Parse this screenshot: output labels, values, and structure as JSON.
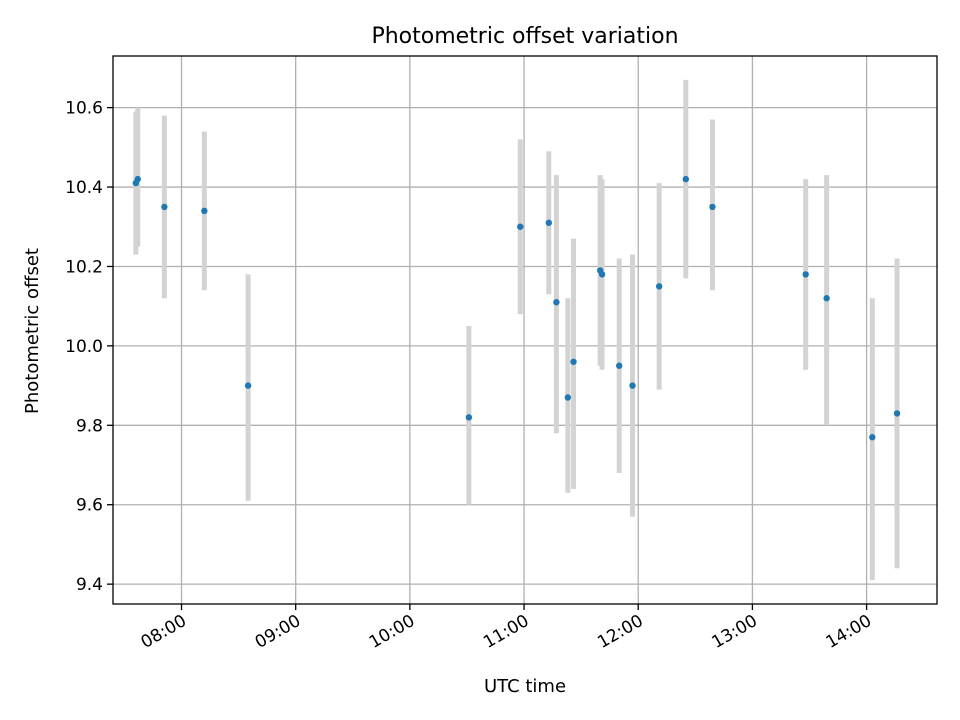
{
  "chart_data": {
    "type": "scatter",
    "title": "Photometric offset variation",
    "xlabel": "UTC time",
    "ylabel": "Photometric offset",
    "x_axis": {
      "kind": "time",
      "range": [
        "07:24",
        "14:37"
      ],
      "ticks": [
        "08:00",
        "09:00",
        "10:00",
        "11:00",
        "12:00",
        "13:00",
        "14:00"
      ]
    },
    "y_axis": {
      "range": [
        9.35,
        10.73
      ],
      "ticks": [
        9.4,
        9.6,
        9.8,
        10.0,
        10.2,
        10.4,
        10.6
      ]
    },
    "grid": true,
    "legend": "none",
    "colors": {
      "point": "#1f77b4",
      "errorbar": "#d3d3d3"
    },
    "points": [
      {
        "x": "07:36",
        "y": 10.41,
        "err_low": 10.23,
        "err_high": 10.59
      },
      {
        "x": "07:37",
        "y": 10.42,
        "err_low": 10.25,
        "err_high": 10.6
      },
      {
        "x": "07:51",
        "y": 10.35,
        "err_low": 10.12,
        "err_high": 10.58
      },
      {
        "x": "08:12",
        "y": 10.34,
        "err_low": 10.14,
        "err_high": 10.54
      },
      {
        "x": "08:35",
        "y": 9.9,
        "err_low": 9.61,
        "err_high": 10.18
      },
      {
        "x": "10:31",
        "y": 9.82,
        "err_low": 9.6,
        "err_high": 10.05
      },
      {
        "x": "10:58",
        "y": 10.3,
        "err_low": 10.08,
        "err_high": 10.52
      },
      {
        "x": "11:13",
        "y": 10.31,
        "err_low": 10.13,
        "err_high": 10.49
      },
      {
        "x": "11:17",
        "y": 10.11,
        "err_low": 9.78,
        "err_high": 10.43
      },
      {
        "x": "11:23",
        "y": 9.87,
        "err_low": 9.63,
        "err_high": 10.12
      },
      {
        "x": "11:26",
        "y": 9.96,
        "err_low": 9.64,
        "err_high": 10.27
      },
      {
        "x": "11:40",
        "y": 10.19,
        "err_low": 9.95,
        "err_high": 10.43
      },
      {
        "x": "11:41",
        "y": 10.18,
        "err_low": 9.94,
        "err_high": 10.42
      },
      {
        "x": "11:50",
        "y": 9.95,
        "err_low": 9.68,
        "err_high": 10.22
      },
      {
        "x": "11:57",
        "y": 9.9,
        "err_low": 9.57,
        "err_high": 10.23
      },
      {
        "x": "12:11",
        "y": 10.15,
        "err_low": 9.89,
        "err_high": 10.41
      },
      {
        "x": "12:25",
        "y": 10.42,
        "err_low": 10.17,
        "err_high": 10.67
      },
      {
        "x": "12:39",
        "y": 10.35,
        "err_low": 10.14,
        "err_high": 10.57
      },
      {
        "x": "13:28",
        "y": 10.18,
        "err_low": 9.94,
        "err_high": 10.42
      },
      {
        "x": "13:39",
        "y": 10.12,
        "err_low": 9.8,
        "err_high": 10.43
      },
      {
        "x": "14:03",
        "y": 9.77,
        "err_low": 9.41,
        "err_high": 10.12
      },
      {
        "x": "14:16",
        "y": 9.83,
        "err_low": 9.44,
        "err_high": 10.22
      }
    ]
  }
}
